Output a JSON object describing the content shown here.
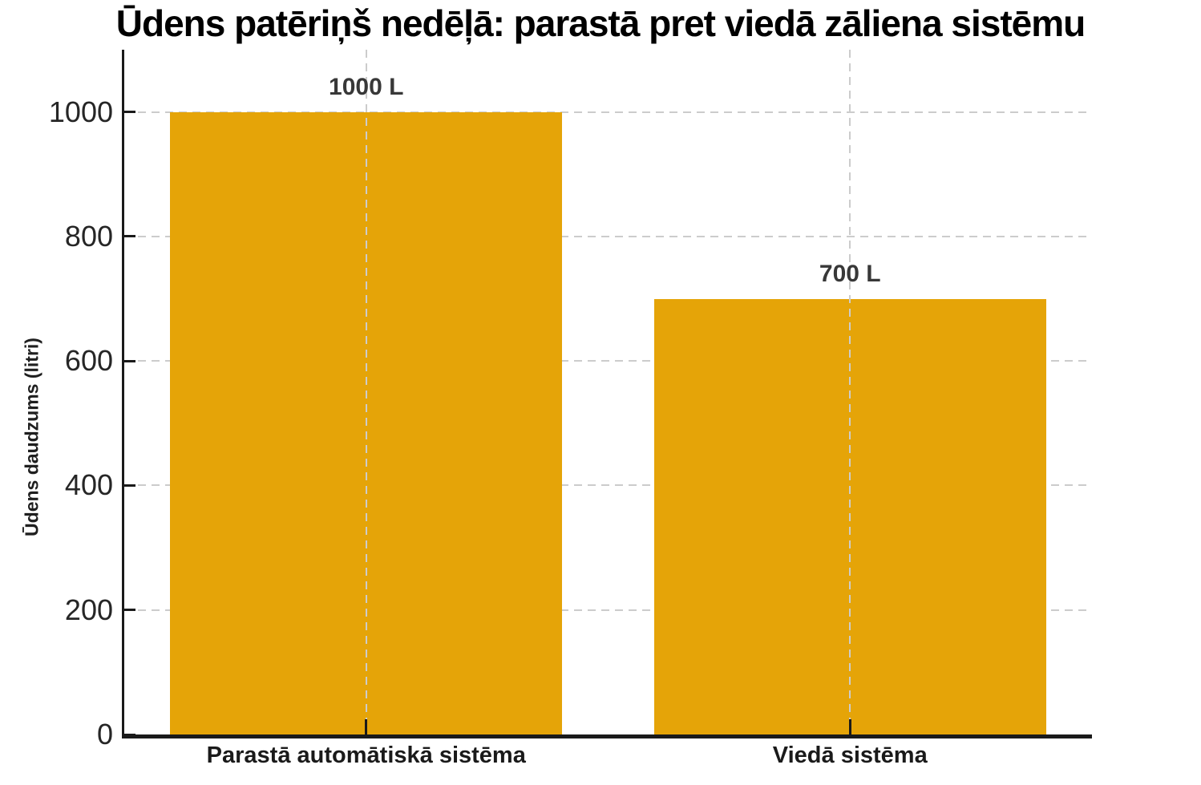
{
  "chart_data": {
    "type": "bar",
    "title": "Ūdens patēriņš nedēļā: parastā pret viedā zāliena sistēmu",
    "ylabel": "Ūdens daudzums (litri)",
    "xlabel": "",
    "categories": [
      "Parastā automātiskā sistēma",
      "Viedā sistēma"
    ],
    "values": [
      1000,
      700
    ],
    "bar_labels": [
      "1000 L",
      "700 L"
    ],
    "yticks": [
      0,
      200,
      400,
      600,
      800,
      1000
    ],
    "ylim": [
      0,
      1100
    ],
    "bar_width_fraction": 0.81,
    "bar_color": "#E5A408",
    "grid": {
      "visible": true,
      "style": "dashed",
      "color": "#CCCCCC",
      "axes": "both"
    },
    "axis_color": "#1A1A1A",
    "tick_direction": "in",
    "tick_label_color": "#262626",
    "value_label_color": "#383838",
    "title_color": "#000000",
    "background_color": "#FFFFFF",
    "legend_position": "none"
  }
}
